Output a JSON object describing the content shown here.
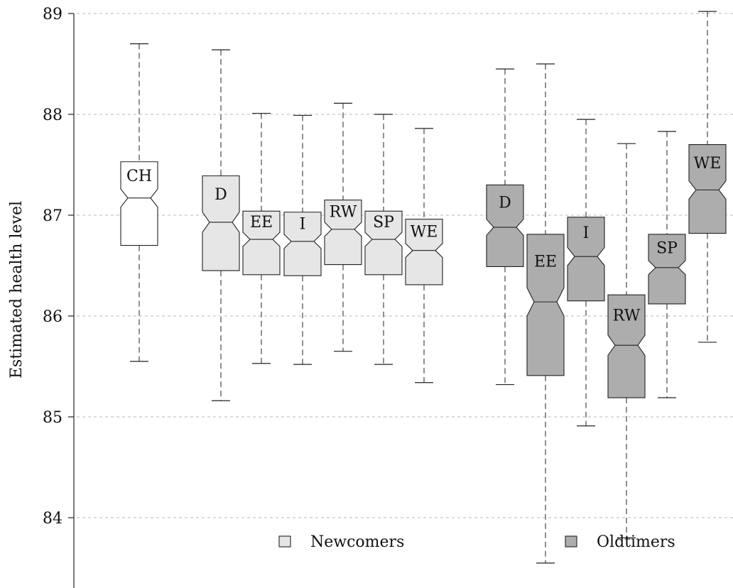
{
  "chart_data": {
    "type": "boxplot",
    "ylabel": "Estimated health level",
    "ylim": [
      83.3,
      89.0
    ],
    "yticks": [
      84,
      85,
      86,
      87,
      88,
      89
    ],
    "grid": true,
    "notched": true,
    "colors": {
      "reference": "#ffffff",
      "Newcomers": "#e6e6e6",
      "Oldtimers": "#adadad"
    },
    "legend": [
      {
        "label": "Newcomers",
        "group": "Newcomers"
      },
      {
        "label": "Oldtimers",
        "group": "Oldtimers"
      }
    ],
    "boxes": [
      {
        "label": "CH",
        "group": "reference",
        "whisker_low": 85.55,
        "q1": 86.7,
        "median": 87.17,
        "q3": 87.53,
        "whisker_high": 88.7,
        "notch_low": 87.08,
        "notch_high": 87.26
      },
      {
        "label": "D",
        "group": "Newcomers",
        "whisker_low": 85.16,
        "q1": 86.45,
        "median": 86.93,
        "q3": 87.39,
        "whisker_high": 88.64,
        "notch_low": 86.83,
        "notch_high": 87.03
      },
      {
        "label": "EE",
        "group": "Newcomers",
        "whisker_low": 85.53,
        "q1": 86.41,
        "median": 86.76,
        "q3": 87.04,
        "whisker_high": 88.01,
        "notch_low": 86.69,
        "notch_high": 86.83
      },
      {
        "label": "I",
        "group": "Newcomers",
        "whisker_low": 85.52,
        "q1": 86.4,
        "median": 86.74,
        "q3": 87.03,
        "whisker_high": 87.99,
        "notch_low": 86.67,
        "notch_high": 86.81
      },
      {
        "label": "RW",
        "group": "Newcomers",
        "whisker_low": 85.65,
        "q1": 86.51,
        "median": 86.86,
        "q3": 87.15,
        "whisker_high": 88.11,
        "notch_low": 86.79,
        "notch_high": 86.93
      },
      {
        "label": "SP",
        "group": "Newcomers",
        "whisker_low": 85.52,
        "q1": 86.41,
        "median": 86.76,
        "q3": 87.04,
        "whisker_high": 88.0,
        "notch_low": 86.69,
        "notch_high": 86.83
      },
      {
        "label": "WE",
        "group": "Newcomers",
        "whisker_low": 85.34,
        "q1": 86.31,
        "median": 86.65,
        "q3": 86.96,
        "whisker_high": 87.86,
        "notch_low": 86.58,
        "notch_high": 86.72
      },
      {
        "label": "D",
        "group": "Oldtimers",
        "whisker_low": 85.32,
        "q1": 86.49,
        "median": 86.88,
        "q3": 87.3,
        "whisker_high": 88.45,
        "notch_low": 86.8,
        "notch_high": 86.96
      },
      {
        "label": "EE",
        "group": "Oldtimers",
        "whisker_low": 83.55,
        "q1": 85.41,
        "median": 86.14,
        "q3": 86.81,
        "whisker_high": 88.5,
        "notch_low": 86.0,
        "notch_high": 86.28
      },
      {
        "label": "I",
        "group": "Oldtimers",
        "whisker_low": 84.91,
        "q1": 86.15,
        "median": 86.59,
        "q3": 86.98,
        "whisker_high": 87.95,
        "notch_low": 86.5,
        "notch_high": 86.68
      },
      {
        "label": "RW",
        "group": "Oldtimers",
        "whisker_low": 83.8,
        "q1": 85.19,
        "median": 85.71,
        "q3": 86.21,
        "whisker_high": 87.71,
        "notch_low": 85.61,
        "notch_high": 85.81
      },
      {
        "label": "SP",
        "group": "Oldtimers",
        "whisker_low": 85.19,
        "q1": 86.12,
        "median": 86.48,
        "q3": 86.81,
        "whisker_high": 87.83,
        "notch_low": 86.41,
        "notch_high": 86.55
      },
      {
        "label": "WE",
        "group": "Oldtimers",
        "whisker_low": 85.74,
        "q1": 86.82,
        "median": 87.25,
        "q3": 87.7,
        "whisker_high": 89.02,
        "notch_low": 87.16,
        "notch_high": 87.34
      }
    ]
  }
}
